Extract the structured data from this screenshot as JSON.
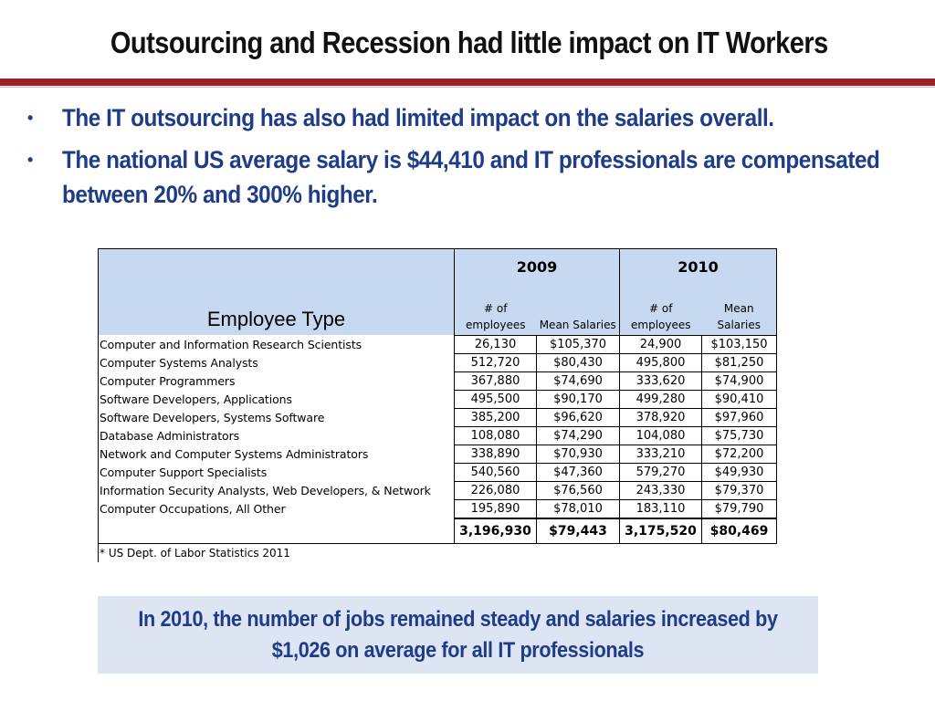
{
  "slide": {
    "title": "Outsourcing and Recession had little impact on IT Workers",
    "bullets": [
      "The IT outsourcing has also had limited impact on the salaries overall.",
      "The national US average salary is $44,410 and IT professionals are compensated between 20% and 300% higher."
    ],
    "bullet_glyph": "•",
    "accent_color": "#9b2226",
    "text_color": "#1f3c88",
    "header_fill": "#c6d9f1",
    "callout_fill": "#dde5f3"
  },
  "table": {
    "employee_type_header": "Employee Type",
    "years": [
      "2009",
      "2010"
    ],
    "sub_headers": {
      "employees": "# of employees",
      "salaries": "Mean Salaries"
    },
    "rows": [
      {
        "type": "Computer and Information Research Scientists",
        "emp2009": "26,130",
        "sal2009": "$105,370",
        "emp2010": "24,900",
        "sal2010": "$103,150"
      },
      {
        "type": "Computer Systems Analysts",
        "emp2009": "512,720",
        "sal2009": "$80,430",
        "emp2010": "495,800",
        "sal2010": "$81,250"
      },
      {
        "type": "Computer Programmers",
        "emp2009": "367,880",
        "sal2009": "$74,690",
        "emp2010": "333,620",
        "sal2010": "$74,900"
      },
      {
        "type": "Software Developers, Applications",
        "emp2009": "495,500",
        "sal2009": "$90,170",
        "emp2010": "499,280",
        "sal2010": "$90,410"
      },
      {
        "type": "Software Developers, Systems Software",
        "emp2009": "385,200",
        "sal2009": "$96,620",
        "emp2010": "378,920",
        "sal2010": "$97,960"
      },
      {
        "type": "Database Administrators",
        "emp2009": "108,080",
        "sal2009": "$74,290",
        "emp2010": "104,080",
        "sal2010": "$75,730"
      },
      {
        "type": "Network and Computer Systems Administrators",
        "emp2009": "338,890",
        "sal2009": "$70,930",
        "emp2010": "333,210",
        "sal2010": "$72,200"
      },
      {
        "type": "Computer Support Specialists",
        "emp2009": "540,560",
        "sal2009": "$47,360",
        "emp2010": "579,270",
        "sal2010": "$49,930"
      },
      {
        "type": "Information Security Analysts, Web Developers, & Network",
        "emp2009": "226,080",
        "sal2009": "$76,560",
        "emp2010": "243,330",
        "sal2010": "$79,370"
      },
      {
        "type": "Computer Occupations, All Other",
        "emp2009": "195,890",
        "sal2009": "$78,010",
        "emp2010": "183,110",
        "sal2010": "$79,790"
      }
    ],
    "totals": {
      "emp2009": "3,196,930",
      "sal2009": "$79,443",
      "emp2010": "3,175,520",
      "sal2010": "$80,469"
    },
    "source_note": "* US Dept. of Labor Statistics 2011"
  },
  "callout": {
    "text": "In 2010, the number of jobs remained steady and salaries increased by $1,026 on average for all IT professionals"
  }
}
